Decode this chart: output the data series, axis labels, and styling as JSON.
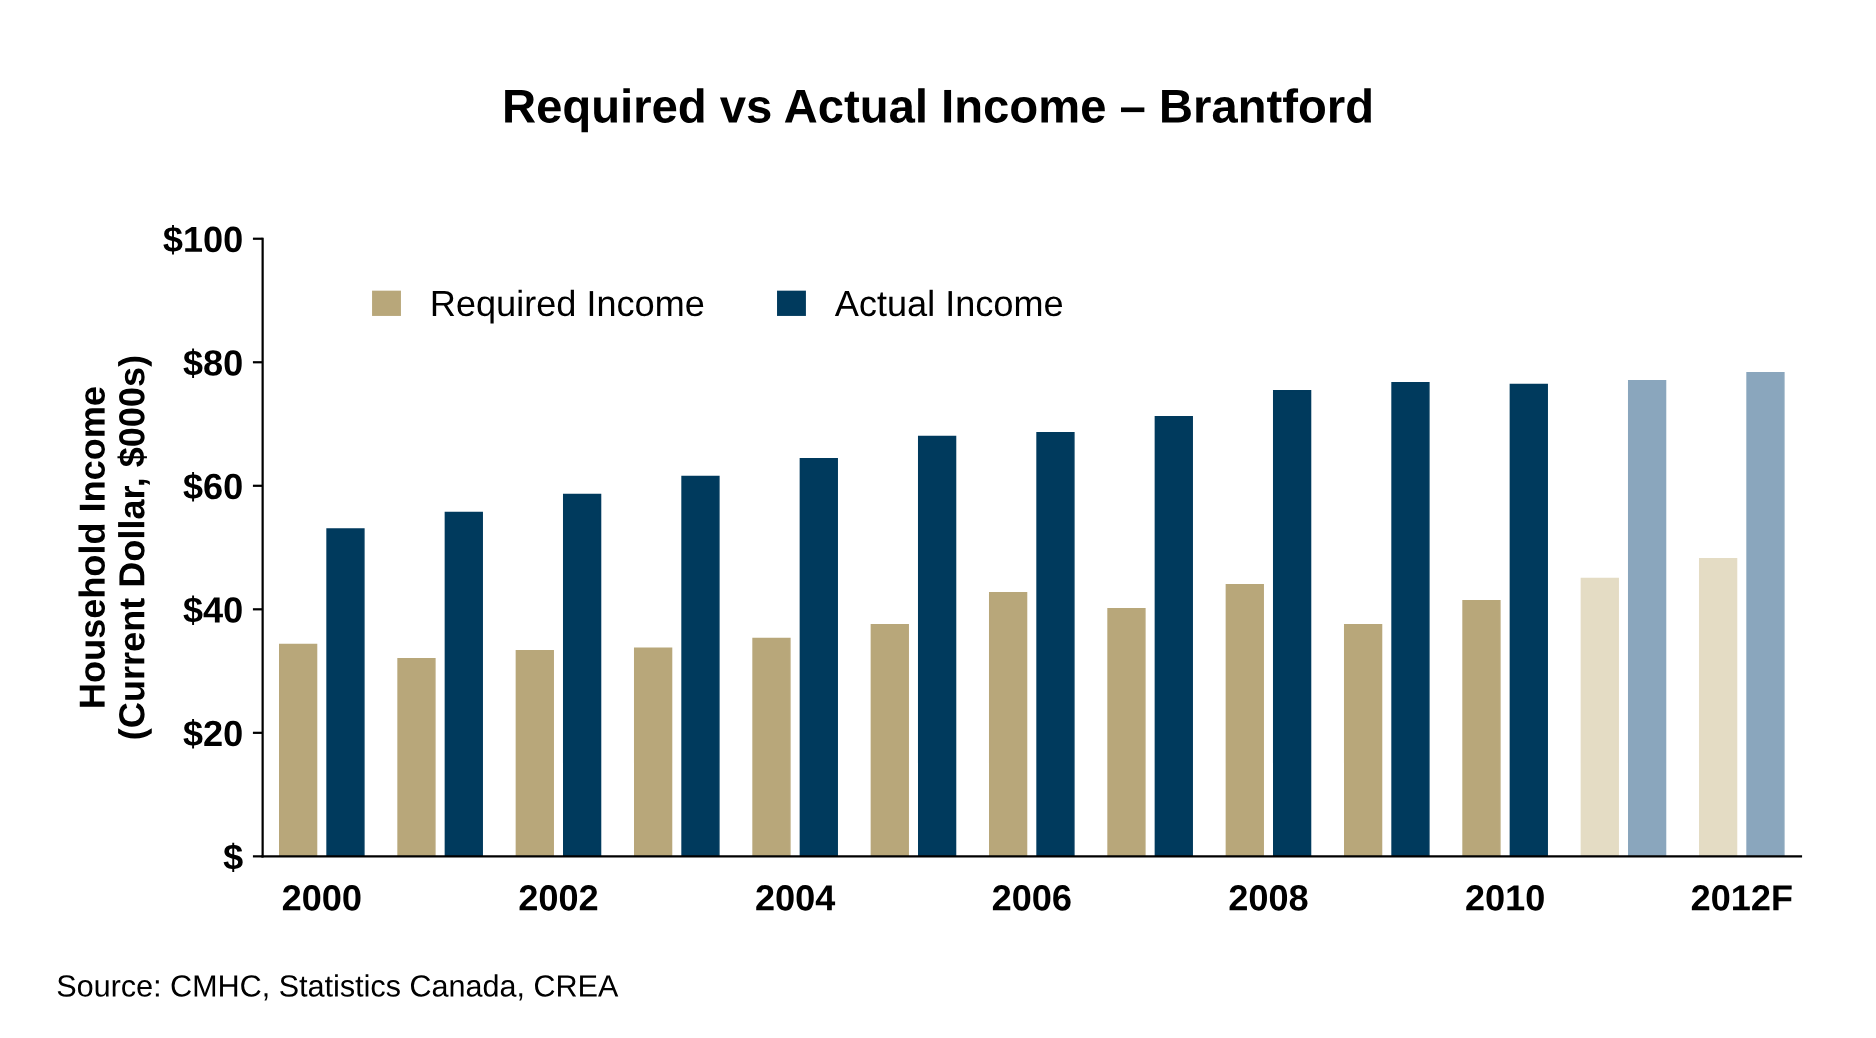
{
  "chart_data": {
    "type": "bar",
    "title": "Required vs Actual Income – Brantford",
    "ylabel": "Household Income\n(Current Dollar, $000s)",
    "categories": [
      "2000",
      null,
      "2002",
      null,
      "2004",
      null,
      "2006",
      null,
      "2008",
      null,
      "2010",
      null,
      "2012F"
    ],
    "series": [
      {
        "name": "Required Income",
        "color": "#b8a77a",
        "colors": [
          "#b8a77a",
          "#b8a77a",
          "#b8a77a",
          "#b8a77a",
          "#b8a77a",
          "#b8a77a",
          "#b8a77a",
          "#b8a77a",
          "#b8a77a",
          "#b8a77a",
          "#b8a77a",
          "#e4dcc4",
          "#e4dcc4"
        ],
        "values": [
          34.3,
          32,
          33.3,
          33.7,
          35.3,
          37.5,
          42.7,
          40.1,
          44,
          37.5,
          41.4,
          45,
          48.2
        ]
      },
      {
        "name": "Actual Income",
        "color": "#003a5d",
        "colors": [
          "#003a5d",
          "#003a5d",
          "#003a5d",
          "#003a5d",
          "#003a5d",
          "#003a5d",
          "#003a5d",
          "#003a5d",
          "#003a5d",
          "#003a5d",
          "#003a5d",
          "#8aa6bd",
          "#8aa6bd"
        ],
        "values": [
          53,
          55.7,
          58.6,
          61.5,
          64.4,
          68,
          68.6,
          71.2,
          75.4,
          76.7,
          76.4,
          77,
          78.3
        ]
      }
    ],
    "ylim": [
      0,
      100
    ],
    "yticks": [
      {
        "value": 0,
        "label": "$"
      },
      {
        "value": 20,
        "label": "$20"
      },
      {
        "value": 40,
        "label": "$40"
      },
      {
        "value": 60,
        "label": "$60"
      },
      {
        "value": 80,
        "label": "$80"
      },
      {
        "value": 100,
        "label": "$100"
      }
    ],
    "legend": "top left",
    "grid": false,
    "annotations": [
      "Source: CMHC, Statistics Canada, CREA"
    ]
  }
}
